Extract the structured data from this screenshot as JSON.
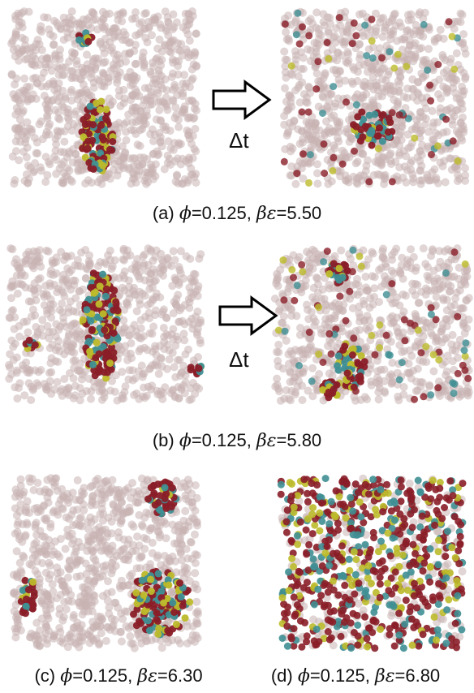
{
  "figure": {
    "arrow_label": "Δt",
    "rows": [
      {
        "caption": {
          "tag": "(a)",
          "phi_symbol": "ϕ",
          "phi_value": "=0.125,",
          "beta_symbol": "βε",
          "beta_value": "=5.50"
        },
        "panels": [
          "before-a",
          "after-a"
        ]
      },
      {
        "caption": {
          "tag": "(b)",
          "phi_symbol": "ϕ",
          "phi_value": "=0.125,",
          "beta_symbol": "βε",
          "beta_value": "=5.80"
        },
        "panels": [
          "before-b",
          "after-b"
        ]
      }
    ],
    "bottom_captions": [
      {
        "tag": "(c)",
        "phi_symbol": "ϕ",
        "phi_value": "=0.125,",
        "beta_symbol": "βε",
        "beta_value": "=6.30"
      },
      {
        "tag": "(d)",
        "phi_symbol": "ϕ",
        "phi_value": "=0.125,",
        "beta_symbol": "βε",
        "beta_value": "=6.80"
      }
    ]
  },
  "colors": {
    "background_particle": "#c9b3b3",
    "maroon": "#8a1e28",
    "teal": "#3f8f94",
    "yellow": "#bdbb2b",
    "arrow_stroke": "#000000"
  }
}
